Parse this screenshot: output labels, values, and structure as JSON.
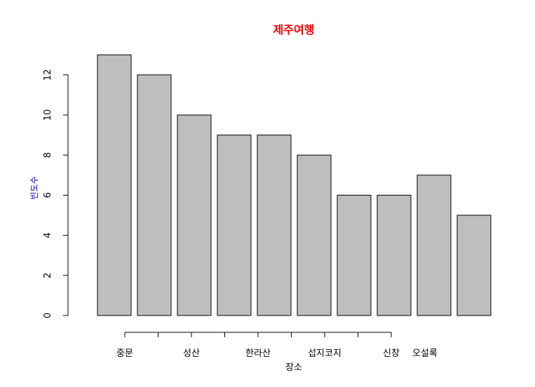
{
  "chart_data": {
    "type": "bar",
    "title": "제주여행",
    "title_color": "#ff0000",
    "xlabel": "장소",
    "ylabel": "빈도수",
    "ylabel_color": "#0000cc",
    "bar_fill": "#bebebe",
    "bar_border": "#000000",
    "ylim": [
      0,
      13
    ],
    "yticks": [
      0,
      2,
      4,
      6,
      8,
      10,
      12
    ],
    "values": [
      13,
      12,
      10,
      9,
      9,
      8,
      6,
      6,
      7,
      5
    ],
    "xaxis_ticks": [
      1,
      2,
      3,
      4,
      5,
      6,
      7,
      8,
      9
    ],
    "xaxis_labels": [
      "중문",
      "",
      "성산",
      "",
      "한라산",
      "",
      "섭지코지",
      "",
      "신창",
      "오설록"
    ]
  }
}
